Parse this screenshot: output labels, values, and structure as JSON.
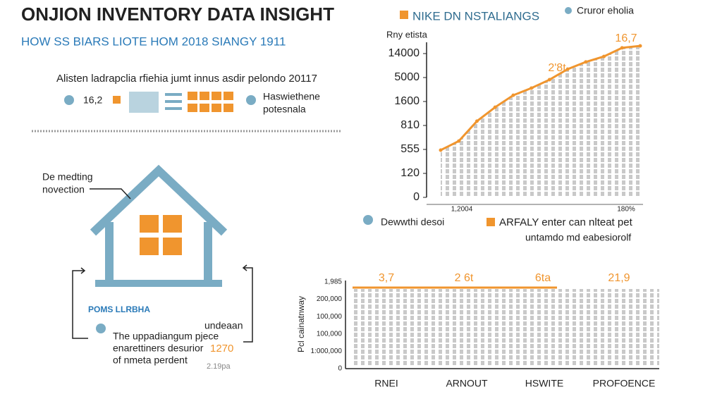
{
  "header": {
    "title": "ONJION INVENTORY DATA INSIGHT",
    "legend": "NIKE DN NSTALIANGS",
    "corner": "Cruror eholia",
    "subtitle": "HOW SS BIARS LIOTE HOM 2018 SIANGY 1911"
  },
  "left_panel": {
    "intro": "Alisten ladrapclia rfiehia jumt innus asdir pelondo 20117",
    "stat": "16,2",
    "note_lines": [
      "Haswiethene",
      "potesnala"
    ],
    "house_callout": [
      "De medting",
      "novection"
    ],
    "flow_label": "POMS LLRBHA",
    "flow_side": "undeaan",
    "flow_lines": [
      "The uppadiangum pjece",
      "enarettiners desurior",
      "of nmeta perdent"
    ],
    "flow_number": "1270",
    "flow_footnote": "2.19pa"
  },
  "chart_data": {
    "type": "line",
    "y_label": "Rny etista",
    "color": "#f0952e",
    "categories": [
      "1,2004",
      null,
      null,
      null,
      null,
      null,
      null,
      null,
      null,
      null,
      null,
      "180%"
    ],
    "values": [
      542,
      644,
      952,
      1410,
      2484,
      3504,
      4694,
      8150,
      10850,
      12920,
      16160,
      16880
    ],
    "ylim": [
      0,
      17000
    ],
    "yticks": [
      0,
      120,
      555,
      810,
      1600,
      5000,
      14000
    ],
    "annotations": [
      "2'8t",
      "16,7"
    ],
    "legend": [
      "Dewwthi desoi",
      "ARFALY enter can nlteat pet",
      "untamdo md eabesiorolf"
    ]
  },
  "bottom_panel": {
    "y_label": "Pcl cainatnway",
    "y_labels": [
      "1,985",
      "200,000",
      "100,000",
      "100,000",
      "1:000,000",
      "0"
    ],
    "top_labels": [
      "3,7",
      "2 6t",
      "6ta",
      "21,9"
    ],
    "x_labels": [
      "RNEI",
      "ARNOUT",
      "HSWITE",
      "PROFOENCE"
    ]
  }
}
